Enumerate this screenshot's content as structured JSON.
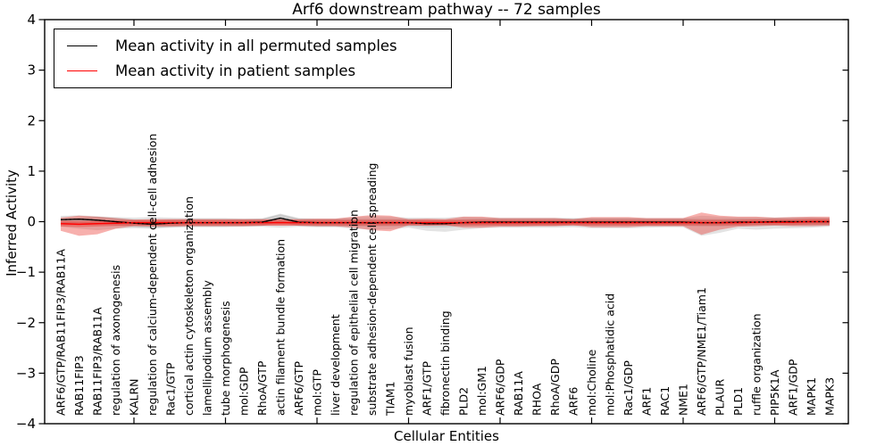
{
  "title": "Arf6 downstream pathway -- 72 samples",
  "xlabel": "Cellular Entities",
  "ylabel": "Inferred Activity",
  "legend": {
    "items": [
      {
        "label": "Mean activity in all permuted samples",
        "color": "#000000"
      },
      {
        "label": "Mean activity in patient samples",
        "color": "#ff0000"
      }
    ]
  },
  "chart_data": {
    "type": "line",
    "title": "Arf6 downstream pathway -- 72 samples",
    "xlabel": "Cellular Entities",
    "ylabel": "Inferred Activity",
    "ylim": [
      -4,
      4
    ],
    "ytick_labels": [
      "4",
      "3",
      "2",
      "1",
      "0",
      "−1",
      "−2",
      "−3",
      "−4"
    ],
    "ytick_values": [
      4,
      3,
      2,
      1,
      0,
      -1,
      -2,
      -3,
      -4
    ],
    "xtick_indices": [
      4,
      9,
      14,
      19,
      24,
      29,
      34,
      39
    ],
    "grid": false,
    "legend_position": "upper left",
    "categories": [
      "ARF6/GTP/RAB11FIP3/RAB11A",
      "RAB11FIP3",
      "RAB11FIP3/RAB11A",
      "regulation of axonogenesis",
      "KALRN",
      "regulation of calcium-dependent cell-cell adhesion",
      "Rac1/GTP",
      "cortical actin cytoskeleton organization",
      "lamellipodium assembly",
      "tube morphogenesis",
      "mol:GDP",
      "RhoA/GTP",
      "actin filament bundle formation",
      "ARF6/GTP",
      "mol:GTP",
      "liver development",
      "regulation of epithelial cell migration",
      "substrate adhesion-dependent cell spreading",
      "TIAM1",
      "myoblast fusion",
      "ARF1/GTP",
      "fibronectin binding",
      "PLD2",
      "mol:GM1",
      "ARF6/GDP",
      "RAB11A",
      "RHOA",
      "RhoA/GDP",
      "ARF6",
      "mol:Choline",
      "mol:Phosphatidic acid",
      "Rac1/GDP",
      "ARF1",
      "RAC1",
      "NME1",
      "ARF6/GTP/NME1/Tiam1",
      "PLAUR",
      "PLD1",
      "ruffle organization",
      "PIP5K1A",
      "ARF1/GDP",
      "MAPK1",
      "MAPK3"
    ],
    "series": [
      {
        "name": "Mean activity in all permuted samples",
        "color": "#000000",
        "values": [
          0.04,
          0.05,
          0.03,
          0.0,
          -0.03,
          -0.05,
          -0.03,
          -0.02,
          -0.02,
          -0.02,
          -0.02,
          -0.01,
          0.07,
          -0.01,
          -0.02,
          -0.02,
          -0.02,
          -0.02,
          -0.02,
          -0.02,
          -0.04,
          -0.04,
          -0.02,
          -0.01,
          -0.01,
          -0.01,
          -0.01,
          -0.01,
          -0.01,
          -0.01,
          -0.01,
          -0.01,
          -0.01,
          -0.01,
          -0.01,
          -0.02,
          -0.02,
          -0.01,
          -0.01,
          0.0,
          0.0,
          0.0,
          0.0
        ]
      },
      {
        "name": "Mean activity in patient samples",
        "color": "#ff0000",
        "values": [
          -0.04,
          -0.05,
          -0.04,
          -0.03,
          -0.02,
          -0.02,
          -0.02,
          -0.02,
          -0.02,
          -0.02,
          -0.02,
          -0.02,
          -0.02,
          -0.02,
          -0.02,
          -0.02,
          -0.02,
          -0.02,
          -0.02,
          -0.02,
          -0.02,
          -0.02,
          -0.02,
          -0.02,
          -0.02,
          -0.02,
          -0.02,
          -0.02,
          -0.02,
          -0.02,
          -0.02,
          -0.02,
          -0.02,
          -0.02,
          -0.02,
          -0.02,
          -0.02,
          -0.02,
          -0.01,
          -0.01,
          -0.01,
          0.0,
          0.0
        ]
      }
    ],
    "bands": [
      {
        "name": "permuted-samples-range",
        "color": "#666666",
        "core_halfwidth": 0.075,
        "upper": [
          0.05,
          0.08,
          0.1,
          0.09,
          0.08,
          0.09,
          0.08,
          0.07,
          0.07,
          0.07,
          0.06,
          0.06,
          0.16,
          0.07,
          0.06,
          0.06,
          0.09,
          0.11,
          0.1,
          0.08,
          0.08,
          0.08,
          0.1,
          0.09,
          0.08,
          0.08,
          0.08,
          0.08,
          0.07,
          0.08,
          0.08,
          0.08,
          0.07,
          0.07,
          0.07,
          0.12,
          0.1,
          0.09,
          0.09,
          0.08,
          0.09,
          0.09,
          0.08
        ],
        "lower": [
          -0.1,
          -0.14,
          -0.17,
          -0.14,
          -0.13,
          -0.14,
          -0.12,
          -0.11,
          -0.11,
          -0.11,
          -0.1,
          -0.1,
          -0.12,
          -0.1,
          -0.11,
          -0.11,
          -0.14,
          -0.16,
          -0.15,
          -0.12,
          -0.18,
          -0.2,
          -0.16,
          -0.13,
          -0.12,
          -0.12,
          -0.12,
          -0.12,
          -0.11,
          -0.13,
          -0.13,
          -0.13,
          -0.12,
          -0.11,
          -0.11,
          -0.28,
          -0.22,
          -0.14,
          -0.16,
          -0.14,
          -0.13,
          -0.12,
          -0.1
        ]
      },
      {
        "name": "patient-samples-range",
        "color": "#e8251c",
        "core_halfwidth": 0.055,
        "upper": [
          0.08,
          0.12,
          0.1,
          0.07,
          0.04,
          0.05,
          0.05,
          0.05,
          0.05,
          0.05,
          0.05,
          0.05,
          0.05,
          0.05,
          0.06,
          0.06,
          0.1,
          0.13,
          0.12,
          0.05,
          0.06,
          0.05,
          0.1,
          0.1,
          0.07,
          0.07,
          0.07,
          0.07,
          0.05,
          0.09,
          0.09,
          0.09,
          0.07,
          0.07,
          0.07,
          0.18,
          0.12,
          0.1,
          0.1,
          0.08,
          0.09,
          0.1,
          0.1
        ],
        "lower": [
          -0.18,
          -0.28,
          -0.25,
          -0.14,
          -0.09,
          -0.1,
          -0.1,
          -0.09,
          -0.09,
          -0.09,
          -0.09,
          -0.08,
          -0.08,
          -0.08,
          -0.09,
          -0.09,
          -0.12,
          -0.17,
          -0.19,
          -0.07,
          -0.08,
          -0.07,
          -0.12,
          -0.12,
          -0.1,
          -0.1,
          -0.09,
          -0.09,
          -0.07,
          -0.11,
          -0.11,
          -0.11,
          -0.09,
          -0.09,
          -0.09,
          -0.26,
          -0.16,
          -0.1,
          -0.09,
          -0.08,
          -0.09,
          -0.09,
          -0.08
        ]
      }
    ]
  }
}
